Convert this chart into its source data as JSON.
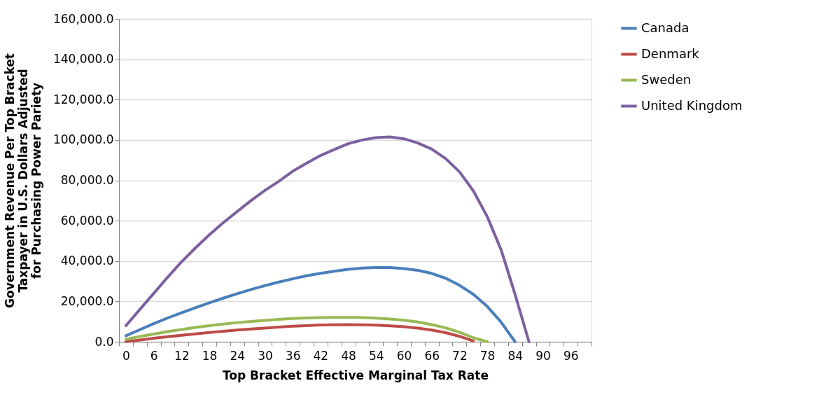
{
  "chart_data": {
    "type": "line",
    "xlabel": "Top Bracket Effective Marginal Tax Rate",
    "ylabel": "Government Revenue Per Top Bracket Taxpayer in U.S.  Dollars Adjusted for Purchasing Power Pariety",
    "categories": [
      "0",
      null,
      "6",
      null,
      "12",
      null,
      "18",
      null,
      "24",
      null,
      "30",
      null,
      "36",
      null,
      "42",
      null,
      "48",
      null,
      "54",
      null,
      "60",
      null,
      "66",
      null,
      "72",
      null,
      "78",
      null,
      "84",
      null,
      "90",
      null,
      "96",
      null
    ],
    "series": [
      {
        "name": "Canada",
        "color": "#4a7ebb",
        "values": [
          3000,
          6000,
          9000,
          11800,
          14400,
          16900,
          19300,
          21600,
          23800,
          25900,
          27800,
          29600,
          31200,
          32700,
          33900,
          35000,
          35900,
          36500,
          36800,
          36800,
          36300,
          35400,
          33900,
          31500,
          28000,
          23500,
          17500,
          9700,
          0,
          null,
          null,
          null,
          null,
          null
        ]
      },
      {
        "name": "Denmark",
        "color": "#be4b48",
        "values": [
          0,
          900,
          1700,
          2500,
          3200,
          3900,
          4600,
          5200,
          5800,
          6300,
          6800,
          7300,
          7700,
          8000,
          8300,
          8400,
          8500,
          8400,
          8200,
          7900,
          7500,
          6800,
          5800,
          4500,
          2700,
          400,
          null,
          null,
          null,
          null,
          null,
          null,
          null,
          null
        ]
      },
      {
        "name": "Sweden",
        "color": "#98b954",
        "values": [
          1200,
          2600,
          3800,
          5000,
          6100,
          7100,
          8000,
          8800,
          9500,
          10100,
          10600,
          11100,
          11500,
          11800,
          12000,
          12100,
          12100,
          12000,
          11700,
          11300,
          10700,
          9800,
          8500,
          6900,
          4700,
          2000,
          0,
          null,
          null,
          null,
          null,
          null,
          null,
          null
        ]
      },
      {
        "name": "United Kingdom",
        "color": "#7d60a0",
        "values": [
          8000,
          16000,
          24000,
          32000,
          39600,
          46500,
          53000,
          59000,
          64500,
          70000,
          75000,
          79500,
          84500,
          88500,
          92300,
          95300,
          98200,
          100000,
          101200,
          101500,
          100600,
          98500,
          95500,
          90800,
          84200,
          74800,
          62000,
          45500,
          23500,
          0,
          null,
          null,
          null,
          null
        ]
      }
    ],
    "ylim": [
      0,
      160000
    ],
    "yticks": [
      {
        "value": 0,
        "label": "0.0"
      },
      {
        "value": 20000,
        "label": "20,000.0"
      },
      {
        "value": 40000,
        "label": "40,000.0"
      },
      {
        "value": 60000,
        "label": "60,000.0"
      },
      {
        "value": 80000,
        "label": "80,000.0"
      },
      {
        "value": 100000,
        "label": "100,000.0"
      },
      {
        "value": 120000,
        "label": "120,000.0"
      },
      {
        "value": 140000,
        "label": "140,000.0"
      },
      {
        "value": 160000,
        "label": "160,000.0"
      }
    ],
    "grid": "y",
    "legend": "right",
    "line_style": "solid",
    "marker": "none"
  }
}
